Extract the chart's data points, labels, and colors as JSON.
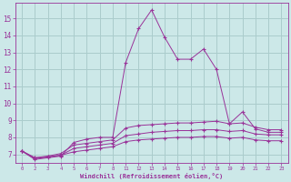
{
  "xlabel": "Windchill (Refroidissement éolien,°C)",
  "background_color": "#cce8e8",
  "grid_color": "#aacccc",
  "line_color": "#993399",
  "x_ticks": [
    0,
    2,
    3,
    4,
    5,
    6,
    7,
    8,
    11,
    12,
    13,
    14,
    15,
    16,
    17,
    18,
    19,
    20,
    21,
    22,
    23
  ],
  "ylim": [
    6.5,
    15.9
  ],
  "xlim": [
    -0.3,
    23.8
  ],
  "line1_x": [
    0,
    2,
    3,
    4,
    5,
    6,
    7,
    8,
    11,
    12,
    13,
    14,
    15,
    16,
    17,
    18,
    19,
    20,
    21,
    22,
    23
  ],
  "line1_y": [
    7.2,
    6.7,
    6.8,
    6.9,
    7.7,
    7.9,
    8.0,
    8.0,
    12.4,
    14.4,
    15.5,
    13.9,
    12.6,
    12.6,
    13.2,
    12.0,
    8.8,
    9.5,
    8.5,
    8.3,
    8.3
  ],
  "line2_x": [
    0,
    2,
    3,
    4,
    5,
    6,
    7,
    8,
    11,
    12,
    13,
    14,
    15,
    16,
    17,
    18,
    19,
    20,
    21,
    22,
    23
  ],
  "line2_y": [
    7.2,
    6.8,
    6.9,
    7.05,
    7.55,
    7.65,
    7.75,
    7.85,
    8.55,
    8.7,
    8.75,
    8.8,
    8.85,
    8.85,
    8.9,
    8.95,
    8.8,
    8.85,
    8.6,
    8.45,
    8.45
  ],
  "line3_x": [
    0,
    2,
    3,
    4,
    5,
    6,
    7,
    8,
    11,
    12,
    13,
    14,
    15,
    16,
    17,
    18,
    19,
    20,
    21,
    22,
    23
  ],
  "line3_y": [
    7.2,
    6.75,
    6.85,
    6.95,
    7.35,
    7.45,
    7.55,
    7.65,
    8.1,
    8.2,
    8.3,
    8.35,
    8.4,
    8.4,
    8.45,
    8.45,
    8.35,
    8.4,
    8.2,
    8.15,
    8.15
  ],
  "line4_x": [
    0,
    2,
    3,
    4,
    5,
    6,
    7,
    8,
    11,
    12,
    13,
    14,
    15,
    16,
    17,
    18,
    19,
    20,
    21,
    22,
    23
  ],
  "line4_y": [
    7.2,
    6.8,
    6.85,
    6.95,
    7.15,
    7.25,
    7.35,
    7.45,
    7.75,
    7.85,
    7.9,
    7.95,
    8.0,
    8.0,
    8.05,
    8.05,
    7.95,
    8.0,
    7.85,
    7.8,
    7.8
  ]
}
